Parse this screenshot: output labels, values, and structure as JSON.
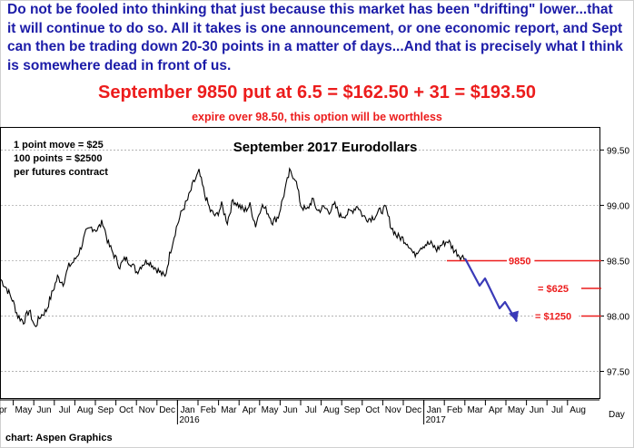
{
  "headline": "Do not be fooled into thinking that just because this market has been \"drifting\" lower...that it will continue to do so. All it takes is one announcement, or one economic report, and Sept can then be trading down 20-30 points in a matter of days...And that is precisely what I think is somewhere dead in front of us.",
  "offer": "September 9850 put at 6.5 = $162.50 + 31 = $193.50",
  "note": "expire over 98.50, this option will be worthless",
  "footer": "chart: Aspen Graphics",
  "colors": {
    "headline": "#1c1ca8",
    "red": "#ec1c1c",
    "arrow": "#3a3ab8",
    "price": "#000000"
  },
  "chart_data": {
    "type": "line",
    "title": "September 2017 Eurodollars",
    "xlabel": "Day",
    "ylim": [
      97.25,
      99.7
    ],
    "y_ticks": [
      "99.50",
      "99.00",
      "98.50",
      "98.00",
      "97.50"
    ],
    "y_tick_values": [
      99.5,
      99.0,
      98.5,
      98.0,
      97.5
    ],
    "x_month_labels": [
      "pr",
      "May",
      "Jun",
      "Jul",
      "Aug",
      "Sep",
      "Oct",
      "Nov",
      "Dec",
      "Jan",
      "Feb",
      "Mar",
      "Apr",
      "May",
      "Jun",
      "Jul",
      "Aug",
      "Sep",
      "Oct",
      "Nov",
      "Dec",
      "Jan",
      "Feb",
      "Mar",
      "Apr",
      "May",
      "Jun",
      "Jul",
      "Aug"
    ],
    "year_labels": [
      {
        "label": "2016",
        "month_index": 9
      },
      {
        "label": "2017",
        "month_index": 21
      }
    ],
    "info_box": [
      "1 point move = $25",
      "100 points = $2500",
      "per futures contract"
    ],
    "levels": [
      {
        "label": "9850",
        "value": 98.5
      },
      {
        "label": "= $625",
        "value": 98.25
      },
      {
        "label": "= $1250",
        "value": 98.0
      }
    ],
    "projection": {
      "start_value": 98.52,
      "end_value": 97.95
    },
    "series": [
      {
        "values": [
          98.33,
          98.25,
          98.15,
          98.0,
          97.95,
          98.05,
          97.9,
          98.0,
          98.05,
          98.2,
          98.35,
          98.3,
          98.45,
          98.5,
          98.6,
          98.75,
          98.8,
          98.78,
          98.85,
          98.65,
          98.55,
          98.45,
          98.52,
          98.48,
          98.4,
          98.47,
          98.5,
          98.45,
          98.4,
          98.35,
          98.6,
          98.8,
          98.95,
          99.05,
          99.2,
          99.3,
          99.1,
          98.95,
          98.9,
          99.0,
          98.85,
          99.05,
          99.0,
          98.95,
          99.0,
          98.82,
          99.0,
          98.95,
          98.85,
          98.9,
          99.1,
          99.3,
          99.25,
          99.0,
          98.95,
          99.05,
          98.95,
          98.98,
          98.95,
          99.0,
          98.9,
          98.92,
          98.95,
          99.0,
          98.9,
          98.88,
          98.9,
          98.95,
          98.97,
          98.8,
          98.72,
          98.7,
          98.65,
          98.55,
          98.62,
          98.65,
          98.65,
          98.6,
          98.65,
          98.68,
          98.6,
          98.55,
          98.52
        ]
      }
    ]
  }
}
